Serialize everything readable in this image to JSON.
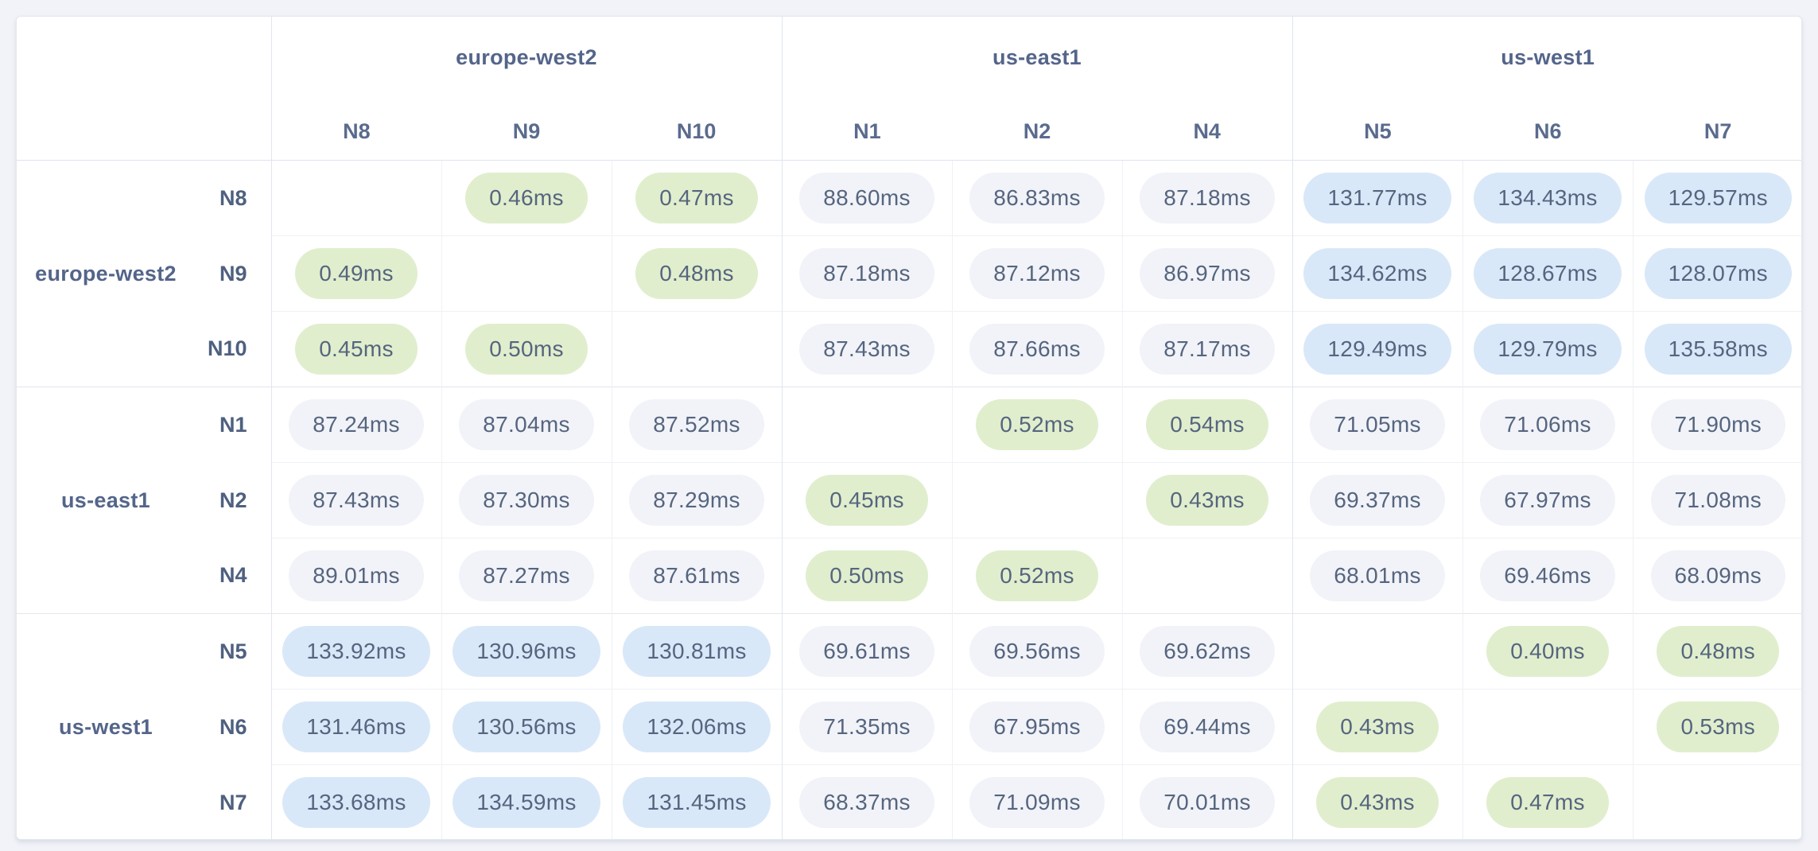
{
  "page": {
    "background_color": "#f1f3f8",
    "card_background": "#ffffff"
  },
  "colors": {
    "fast_pill": "#e0eecd",
    "medium_pill": "#f1f3f8",
    "slow_pill": "#d9e8f8",
    "pill_text": "#56657f",
    "header_text": "#54658a",
    "border_strong": "#e0e5ee",
    "border_light": "#eef1f6"
  },
  "legend_tiers": {
    "fast_max_ms": 10,
    "slow_min_ms": 100
  },
  "matrix": {
    "unit": "ms",
    "groups": [
      {
        "region": "europe-west2",
        "nodes": [
          "N8",
          "N9",
          "N10"
        ]
      },
      {
        "region": "us-east1",
        "nodes": [
          "N1",
          "N2",
          "N4"
        ]
      },
      {
        "region": "us-west1",
        "nodes": [
          "N5",
          "N6",
          "N7"
        ]
      }
    ],
    "rows": [
      {
        "node": "N8",
        "values": [
          null,
          "0.46ms",
          "0.47ms",
          "88.60ms",
          "86.83ms",
          "87.18ms",
          "131.77ms",
          "134.43ms",
          "129.57ms"
        ]
      },
      {
        "node": "N9",
        "values": [
          "0.49ms",
          null,
          "0.48ms",
          "87.18ms",
          "87.12ms",
          "86.97ms",
          "134.62ms",
          "128.67ms",
          "128.07ms"
        ]
      },
      {
        "node": "N10",
        "values": [
          "0.45ms",
          "0.50ms",
          null,
          "87.43ms",
          "87.66ms",
          "87.17ms",
          "129.49ms",
          "129.79ms",
          "135.58ms"
        ]
      },
      {
        "node": "N1",
        "values": [
          "87.24ms",
          "87.04ms",
          "87.52ms",
          null,
          "0.52ms",
          "0.54ms",
          "71.05ms",
          "71.06ms",
          "71.90ms"
        ]
      },
      {
        "node": "N2",
        "values": [
          "87.43ms",
          "87.30ms",
          "87.29ms",
          "0.45ms",
          null,
          "0.43ms",
          "69.37ms",
          "67.97ms",
          "71.08ms"
        ]
      },
      {
        "node": "N4",
        "values": [
          "89.01ms",
          "87.27ms",
          "87.61ms",
          "0.50ms",
          "0.52ms",
          null,
          "68.01ms",
          "69.46ms",
          "68.09ms"
        ]
      },
      {
        "node": "N5",
        "values": [
          "133.92ms",
          "130.96ms",
          "130.81ms",
          "69.61ms",
          "69.56ms",
          "69.62ms",
          null,
          "0.40ms",
          "0.48ms"
        ]
      },
      {
        "node": "N6",
        "values": [
          "131.46ms",
          "130.56ms",
          "132.06ms",
          "71.35ms",
          "67.95ms",
          "69.44ms",
          "0.43ms",
          null,
          "0.53ms"
        ]
      },
      {
        "node": "N7",
        "values": [
          "133.68ms",
          "134.59ms",
          "131.45ms",
          "68.37ms",
          "71.09ms",
          "70.01ms",
          "0.43ms",
          "0.47ms",
          null
        ]
      }
    ]
  }
}
